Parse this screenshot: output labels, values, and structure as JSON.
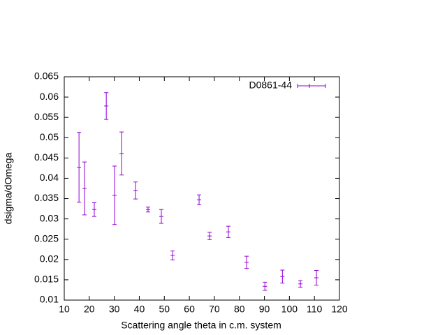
{
  "chart_data": {
    "type": "errorbar",
    "xlabel": "Scattering angle theta in c.m. system",
    "ylabel": "dsigma/dOmega",
    "xlim": [
      10,
      120
    ],
    "xticks": [
      10,
      20,
      30,
      40,
      50,
      60,
      70,
      80,
      90,
      100,
      110,
      120
    ],
    "ylim": [
      0.01,
      0.065
    ],
    "yticks": [
      0.01,
      0.015,
      0.02,
      0.025,
      0.03,
      0.035,
      0.04,
      0.045,
      0.05,
      0.055,
      0.06,
      0.065
    ],
    "legend": "top-right",
    "x": [
      15.9,
      18.1,
      22.0,
      26.8,
      30.1,
      32.9,
      38.5,
      43.5,
      48.8,
      53.3,
      63.9,
      68.1,
      75.6,
      82.9,
      90.2,
      97.2,
      104.4,
      110.8
    ],
    "series": [
      {
        "name": "D0861-44",
        "color": "#9400d3",
        "values": [
          0.0427,
          0.0375,
          0.0323,
          0.0578,
          0.0358,
          0.0461,
          0.037,
          0.0323,
          0.0306,
          0.021,
          0.0347,
          0.0258,
          0.0268,
          0.0193,
          0.0134,
          0.0158,
          0.014,
          0.0155
        ],
        "errors": [
          0.0086,
          0.0065,
          0.0017,
          0.0033,
          0.0072,
          0.0053,
          0.0021,
          0.0006,
          0.0017,
          0.0011,
          0.0012,
          0.0009,
          0.0014,
          0.0015,
          0.001,
          0.0016,
          0.0008,
          0.0018
        ]
      }
    ]
  }
}
